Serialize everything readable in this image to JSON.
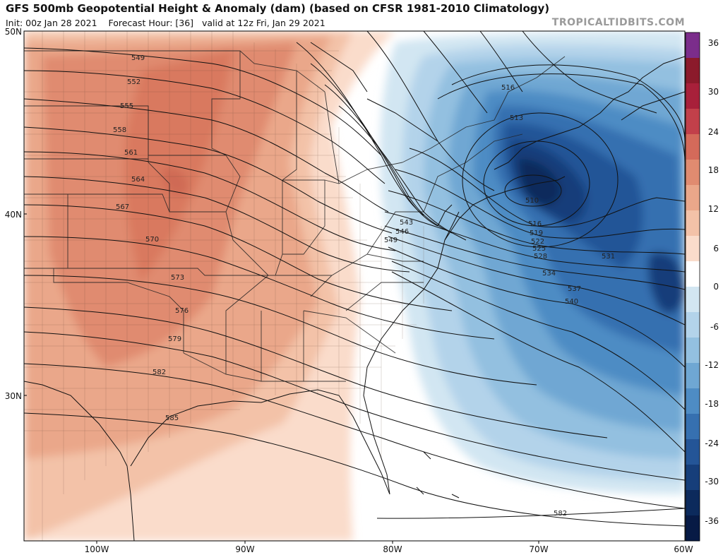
{
  "header": {
    "title": "GFS 500mb Geopotential Height & Anomaly (dam) (based on CFSR 1981-2010 Climatology)",
    "init": "Init: 00z Jan 28 2021",
    "forecast_hour": "Forecast Hour: [36]",
    "valid": "valid at 12z Fri, Jan 29 2021",
    "credit": "TROPICALTIDBITS.COM"
  },
  "map": {
    "lat_labels": [
      "50N",
      "40N",
      "30N"
    ],
    "lon_labels": [
      "100W",
      "90W",
      "80W",
      "70W",
      "60W"
    ],
    "contours": [
      {
        "value": "549"
      },
      {
        "value": "552"
      },
      {
        "value": "555"
      },
      {
        "value": "558"
      },
      {
        "value": "561"
      },
      {
        "value": "564"
      },
      {
        "value": "567"
      },
      {
        "value": "570"
      },
      {
        "value": "573"
      },
      {
        "value": "576"
      },
      {
        "value": "579"
      },
      {
        "value": "582"
      },
      {
        "value": "585"
      },
      {
        "value": "516"
      },
      {
        "value": "513"
      },
      {
        "value": "510"
      },
      {
        "value": "516"
      },
      {
        "value": "519"
      },
      {
        "value": "522"
      },
      {
        "value": "525"
      },
      {
        "value": "528"
      },
      {
        "value": "531"
      },
      {
        "value": "534"
      },
      {
        "value": "537"
      },
      {
        "value": "540"
      },
      {
        "value": "543"
      },
      {
        "value": "546"
      },
      {
        "value": "549"
      },
      {
        "value": "582"
      }
    ]
  },
  "colorbar": {
    "labels": [
      "36",
      "30",
      "24",
      "18",
      "12",
      "6",
      "0",
      "-6",
      "-12",
      "-18",
      "-24",
      "-30",
      "-36"
    ],
    "colors": [
      "#7b2d8b",
      "#8b1a2b",
      "#a8203a",
      "#c2404a",
      "#d46a5a",
      "#e08b70",
      "#eaa78a",
      "#f3c2a8",
      "#fadccb",
      "#ffffff",
      "#d2e6f2",
      "#b3d3ea",
      "#93c0e0",
      "#6fa7d3",
      "#4e8cc4",
      "#3670b0",
      "#245597",
      "#163e7a",
      "#0c2a5c",
      "#071a45"
    ]
  }
}
